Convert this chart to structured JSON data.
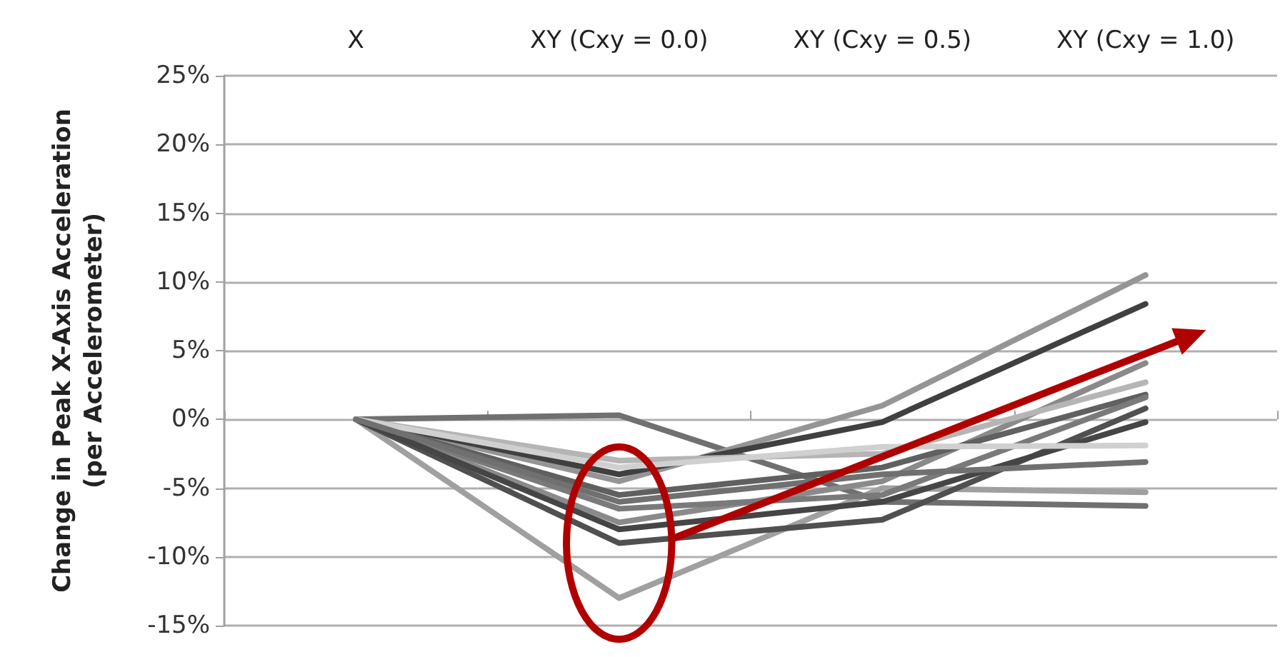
{
  "chart_data": {
    "type": "line",
    "ylabel": "Change in Peak X-Axis Acceleration\n(per Accelerometer)",
    "categories": [
      "X",
      "XY (Cxy = 0.0)",
      "XY (Cxy = 0.5)",
      "XY (Cxy = 1.0)"
    ],
    "ylim": [
      -15,
      25
    ],
    "yticks": [
      {
        "value": -15,
        "label": "-15%"
      },
      {
        "value": -10,
        "label": "-10%"
      },
      {
        "value": -5,
        "label": "-5%"
      },
      {
        "value": 0,
        "label": "0%"
      },
      {
        "value": 5,
        "label": "5%"
      },
      {
        "value": 10,
        "label": "10%"
      },
      {
        "value": 15,
        "label": "15%"
      },
      {
        "value": 20,
        "label": "20%"
      },
      {
        "value": 25,
        "label": "25%"
      }
    ],
    "grid": "y",
    "marker": "none",
    "line_style": "solid",
    "series": [
      {
        "color": "#707070",
        "values": [
          0,
          0.3,
          -6.0,
          -6.3
        ]
      },
      {
        "color": "#a0a0a0",
        "values": [
          0,
          -13.0,
          -5.0,
          -5.3
        ]
      },
      {
        "color": "#959595",
        "values": [
          0,
          -4.5,
          1.0,
          10.5
        ]
      },
      {
        "color": "#404040",
        "values": [
          0,
          -4.0,
          -0.2,
          8.4
        ]
      },
      {
        "color": "#505050",
        "values": [
          0,
          -9.0,
          -7.3,
          0.8
        ]
      },
      {
        "color": "#8a8a8a",
        "values": [
          0,
          -7.5,
          -4.5,
          4.1
        ]
      },
      {
        "color": "#b5b5b5",
        "values": [
          0,
          -3.0,
          -2.5,
          2.7
        ]
      },
      {
        "color": "#606060",
        "values": [
          0,
          -5.5,
          -3.5,
          1.8
        ]
      },
      {
        "color": "#7a7a7a",
        "values": [
          0,
          -6.5,
          -5.5,
          1.6
        ]
      },
      {
        "color": "#454545",
        "values": [
          0,
          -8.0,
          -6.0,
          -0.2
        ]
      },
      {
        "color": "#d0d0d0",
        "values": [
          0,
          -3.5,
          -2.0,
          -1.9
        ]
      },
      {
        "color": "#707070",
        "values": [
          0,
          -6.0,
          -4.0,
          -3.1
        ]
      }
    ]
  }
}
